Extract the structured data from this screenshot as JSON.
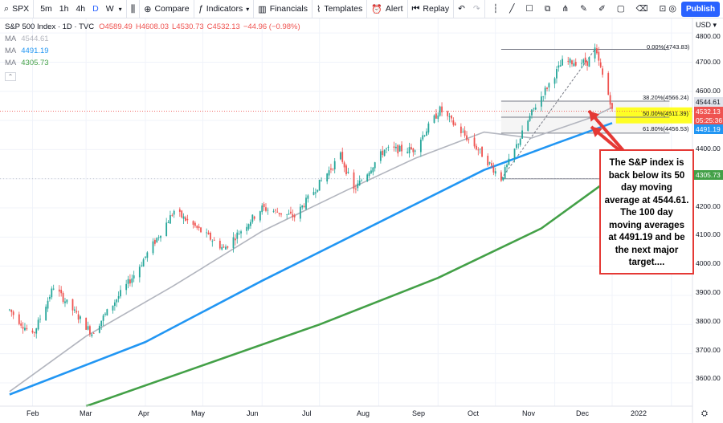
{
  "toolbar": {
    "symbol": "SPX",
    "timeframes": [
      "5m",
      "1h",
      "4h",
      "D",
      "W"
    ],
    "active_timeframe": "D",
    "compare_label": "Compare",
    "indicators_label": "Indicators",
    "financials_label": "Financials",
    "templates_label": "Templates",
    "alert_label": "Alert",
    "replay_label": "Replay",
    "publish_label": "Publish"
  },
  "legend": {
    "title": "S&P 500 Index · 1D · TVC",
    "ohlc": {
      "o": "O4589.49",
      "h": "H4608.03",
      "l": "L4530.73",
      "c": "C4532.13",
      "chg": "−44.96 (−0.98%)"
    },
    "ma": [
      {
        "label": "MA",
        "value": "4544.61",
        "color": "#b2b5be"
      },
      {
        "label": "MA",
        "value": "4491.19",
        "color": "#2196f3"
      },
      {
        "label": "MA",
        "value": "4305.73",
        "color": "#43a047"
      }
    ],
    "collapse_icon": "chevron-up-icon"
  },
  "price_axis": {
    "currency": "USD",
    "ticks": [
      "4800.00",
      "4700.00",
      "4600.00",
      "4400.00",
      "4300.00",
      "4200.00",
      "4100.00",
      "4000.00",
      "3900.00",
      "3800.00",
      "3700.00",
      "3600.00"
    ],
    "labels": [
      {
        "text": "4544.61",
        "color": "#b2b5be",
        "text_color": "#131722"
      },
      {
        "text": "4532.13",
        "color": "#ef5350",
        "text_color": "#ffffff"
      },
      {
        "text": "05:25:36",
        "color": "#ef5350",
        "text_color": "#ffffff"
      },
      {
        "text": "4491.19",
        "color": "#2196f3",
        "text_color": "#ffffff"
      },
      {
        "text": "4305.73",
        "color": "#43a047",
        "text_color": "#ffffff"
      }
    ]
  },
  "time_axis": {
    "labels": [
      "Feb",
      "Mar",
      "Apr",
      "May",
      "Jun",
      "Jul",
      "Aug",
      "Sep",
      "Oct",
      "Nov",
      "Dec",
      "2022"
    ]
  },
  "fibonacci": [
    {
      "label": "0.00%(4743.83)",
      "price": 4743.83
    },
    {
      "label": "38.20%(4566.24)",
      "price": 4566.24
    },
    {
      "label": "50.00%(4511.39)",
      "price": 4511.39
    },
    {
      "label": "61.80%(4456.53)",
      "price": 4456.53
    }
  ],
  "annotation": {
    "text": "The S&P index is back below its 50 day moving average at 4544.61. The 100 day moving averages at 4491.19 and be the next major target...."
  },
  "colors": {
    "up": "#26a69a",
    "down": "#ef5350",
    "ma50": "#b2b5be",
    "ma100": "#2196f3",
    "ma200": "#43a047",
    "highlight": "#ffff00",
    "accent": "#2962ff"
  },
  "chart_data": {
    "type": "candlestick",
    "title": "S&P 500 Index · 1D · TVC",
    "x_range": [
      "2021-01-15",
      "2022-01-12"
    ],
    "ylim": [
      3520,
      4850
    ],
    "price_key_points": [
      {
        "date": "2021-01-20",
        "close": 3850
      },
      {
        "date": "2021-02-01",
        "close": 3760
      },
      {
        "date": "2021-02-12",
        "close": 3930
      },
      {
        "date": "2021-03-04",
        "close": 3770
      },
      {
        "date": "2021-03-26",
        "close": 3970
      },
      {
        "date": "2021-04-16",
        "close": 4190
      },
      {
        "date": "2021-05-12",
        "close": 4060
      },
      {
        "date": "2021-06-01",
        "close": 4200
      },
      {
        "date": "2021-06-18",
        "close": 4170
      },
      {
        "date": "2021-07-12",
        "close": 4380
      },
      {
        "date": "2021-07-19",
        "close": 4260
      },
      {
        "date": "2021-08-04",
        "close": 4400
      },
      {
        "date": "2021-08-19",
        "close": 4400
      },
      {
        "date": "2021-09-02",
        "close": 4537
      },
      {
        "date": "2021-09-22",
        "close": 4400
      },
      {
        "date": "2021-10-04",
        "close": 4300
      },
      {
        "date": "2021-10-21",
        "close": 4540
      },
      {
        "date": "2021-11-05",
        "close": 4700
      },
      {
        "date": "2021-11-18",
        "close": 4700
      },
      {
        "date": "2021-11-22",
        "close": 4743
      },
      {
        "date": "2021-11-30",
        "close": 4567
      },
      {
        "date": "2021-12-01",
        "close": 4532
      }
    ],
    "series": [
      {
        "name": "MA",
        "value_label": "4544.61",
        "points": [
          [
            "2021-01-20",
            3570
          ],
          [
            "2021-03-01",
            3760
          ],
          [
            "2021-04-15",
            3930
          ],
          [
            "2021-06-01",
            4120
          ],
          [
            "2021-07-15",
            4260
          ],
          [
            "2021-08-20",
            4370
          ],
          [
            "2021-09-25",
            4460
          ],
          [
            "2021-10-20",
            4440
          ],
          [
            "2021-11-20",
            4510
          ],
          [
            "2021-12-01",
            4544.61
          ]
        ]
      },
      {
        "name": "MA",
        "value_label": "4491.19",
        "points": [
          [
            "2021-01-20",
            3560
          ],
          [
            "2021-04-01",
            3740
          ],
          [
            "2021-06-01",
            3950
          ],
          [
            "2021-08-01",
            4150
          ],
          [
            "2021-09-25",
            4330
          ],
          [
            "2021-11-01",
            4420
          ],
          [
            "2021-12-01",
            4491.19
          ]
        ]
      },
      {
        "name": "MA",
        "value_label": "4305.73",
        "points": [
          [
            "2021-03-01",
            3520
          ],
          [
            "2021-05-01",
            3660
          ],
          [
            "2021-07-01",
            3800
          ],
          [
            "2021-09-01",
            3960
          ],
          [
            "2021-10-25",
            4130
          ],
          [
            "2021-12-01",
            4305.73
          ]
        ]
      }
    ]
  }
}
